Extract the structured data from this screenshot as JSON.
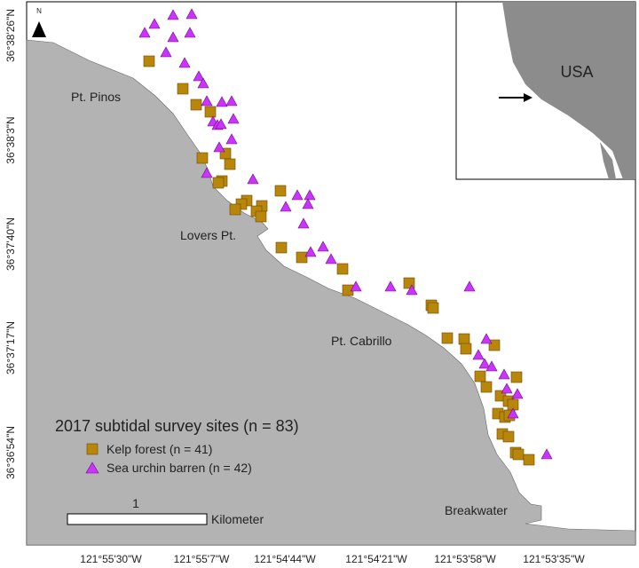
{
  "map": {
    "north_label": "N",
    "lat_labels": [
      "36°38'26\"N",
      "36°38'3\"N",
      "36°37'40\"N",
      "36°37'17\"N",
      "36°36'54\"N"
    ],
    "lon_labels": [
      "121°55'30\"W",
      "121°55'7\"W",
      "121°54'44\"W",
      "121°54'21\"W",
      "121°53'58\"W",
      "121°53'35\"W"
    ],
    "places": [
      "Pt. Pinos",
      "Lovers Pt.",
      "Pt. Cabrillo",
      "Breakwater"
    ],
    "inset_label": "USA",
    "legend": {
      "title": "2017 subtidal survey sites (n = 83)",
      "items": [
        "Kelp forest (n = 41)",
        "Sea urchin barren (n = 42)"
      ]
    },
    "scale_bar": {
      "value": 1,
      "unit": "Kilometer"
    }
  }
}
